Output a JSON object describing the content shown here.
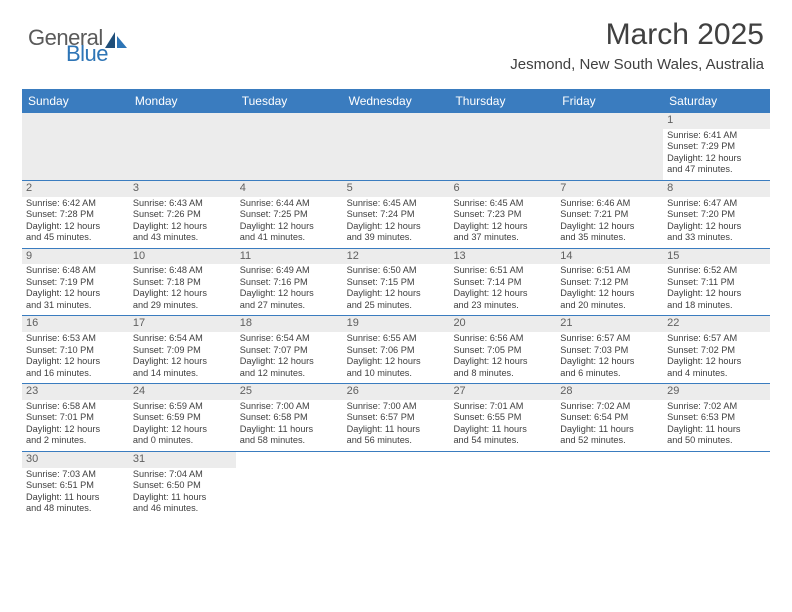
{
  "logo": {
    "general": "General",
    "blue": "Blue"
  },
  "title": "March 2025",
  "location": "Jesmond, New South Wales, Australia",
  "accent_color": "#3a7cbf",
  "logo_color": "#2e75b6",
  "text_color": "#404040",
  "header_bg": "#ececec",
  "days_of_week": [
    "Sunday",
    "Monday",
    "Tuesday",
    "Wednesday",
    "Thursday",
    "Friday",
    "Saturday"
  ],
  "weeks": [
    [
      null,
      null,
      null,
      null,
      null,
      null,
      {
        "n": "1",
        "sr": "Sunrise: 6:41 AM",
        "ss": "Sunset: 7:29 PM",
        "d1": "Daylight: 12 hours",
        "d2": "and 47 minutes."
      }
    ],
    [
      {
        "n": "2",
        "sr": "Sunrise: 6:42 AM",
        "ss": "Sunset: 7:28 PM",
        "d1": "Daylight: 12 hours",
        "d2": "and 45 minutes."
      },
      {
        "n": "3",
        "sr": "Sunrise: 6:43 AM",
        "ss": "Sunset: 7:26 PM",
        "d1": "Daylight: 12 hours",
        "d2": "and 43 minutes."
      },
      {
        "n": "4",
        "sr": "Sunrise: 6:44 AM",
        "ss": "Sunset: 7:25 PM",
        "d1": "Daylight: 12 hours",
        "d2": "and 41 minutes."
      },
      {
        "n": "5",
        "sr": "Sunrise: 6:45 AM",
        "ss": "Sunset: 7:24 PM",
        "d1": "Daylight: 12 hours",
        "d2": "and 39 minutes."
      },
      {
        "n": "6",
        "sr": "Sunrise: 6:45 AM",
        "ss": "Sunset: 7:23 PM",
        "d1": "Daylight: 12 hours",
        "d2": "and 37 minutes."
      },
      {
        "n": "7",
        "sr": "Sunrise: 6:46 AM",
        "ss": "Sunset: 7:21 PM",
        "d1": "Daylight: 12 hours",
        "d2": "and 35 minutes."
      },
      {
        "n": "8",
        "sr": "Sunrise: 6:47 AM",
        "ss": "Sunset: 7:20 PM",
        "d1": "Daylight: 12 hours",
        "d2": "and 33 minutes."
      }
    ],
    [
      {
        "n": "9",
        "sr": "Sunrise: 6:48 AM",
        "ss": "Sunset: 7:19 PM",
        "d1": "Daylight: 12 hours",
        "d2": "and 31 minutes."
      },
      {
        "n": "10",
        "sr": "Sunrise: 6:48 AM",
        "ss": "Sunset: 7:18 PM",
        "d1": "Daylight: 12 hours",
        "d2": "and 29 minutes."
      },
      {
        "n": "11",
        "sr": "Sunrise: 6:49 AM",
        "ss": "Sunset: 7:16 PM",
        "d1": "Daylight: 12 hours",
        "d2": "and 27 minutes."
      },
      {
        "n": "12",
        "sr": "Sunrise: 6:50 AM",
        "ss": "Sunset: 7:15 PM",
        "d1": "Daylight: 12 hours",
        "d2": "and 25 minutes."
      },
      {
        "n": "13",
        "sr": "Sunrise: 6:51 AM",
        "ss": "Sunset: 7:14 PM",
        "d1": "Daylight: 12 hours",
        "d2": "and 23 minutes."
      },
      {
        "n": "14",
        "sr": "Sunrise: 6:51 AM",
        "ss": "Sunset: 7:12 PM",
        "d1": "Daylight: 12 hours",
        "d2": "and 20 minutes."
      },
      {
        "n": "15",
        "sr": "Sunrise: 6:52 AM",
        "ss": "Sunset: 7:11 PM",
        "d1": "Daylight: 12 hours",
        "d2": "and 18 minutes."
      }
    ],
    [
      {
        "n": "16",
        "sr": "Sunrise: 6:53 AM",
        "ss": "Sunset: 7:10 PM",
        "d1": "Daylight: 12 hours",
        "d2": "and 16 minutes."
      },
      {
        "n": "17",
        "sr": "Sunrise: 6:54 AM",
        "ss": "Sunset: 7:09 PM",
        "d1": "Daylight: 12 hours",
        "d2": "and 14 minutes."
      },
      {
        "n": "18",
        "sr": "Sunrise: 6:54 AM",
        "ss": "Sunset: 7:07 PM",
        "d1": "Daylight: 12 hours",
        "d2": "and 12 minutes."
      },
      {
        "n": "19",
        "sr": "Sunrise: 6:55 AM",
        "ss": "Sunset: 7:06 PM",
        "d1": "Daylight: 12 hours",
        "d2": "and 10 minutes."
      },
      {
        "n": "20",
        "sr": "Sunrise: 6:56 AM",
        "ss": "Sunset: 7:05 PM",
        "d1": "Daylight: 12 hours",
        "d2": "and 8 minutes."
      },
      {
        "n": "21",
        "sr": "Sunrise: 6:57 AM",
        "ss": "Sunset: 7:03 PM",
        "d1": "Daylight: 12 hours",
        "d2": "and 6 minutes."
      },
      {
        "n": "22",
        "sr": "Sunrise: 6:57 AM",
        "ss": "Sunset: 7:02 PM",
        "d1": "Daylight: 12 hours",
        "d2": "and 4 minutes."
      }
    ],
    [
      {
        "n": "23",
        "sr": "Sunrise: 6:58 AM",
        "ss": "Sunset: 7:01 PM",
        "d1": "Daylight: 12 hours",
        "d2": "and 2 minutes."
      },
      {
        "n": "24",
        "sr": "Sunrise: 6:59 AM",
        "ss": "Sunset: 6:59 PM",
        "d1": "Daylight: 12 hours",
        "d2": "and 0 minutes."
      },
      {
        "n": "25",
        "sr": "Sunrise: 7:00 AM",
        "ss": "Sunset: 6:58 PM",
        "d1": "Daylight: 11 hours",
        "d2": "and 58 minutes."
      },
      {
        "n": "26",
        "sr": "Sunrise: 7:00 AM",
        "ss": "Sunset: 6:57 PM",
        "d1": "Daylight: 11 hours",
        "d2": "and 56 minutes."
      },
      {
        "n": "27",
        "sr": "Sunrise: 7:01 AM",
        "ss": "Sunset: 6:55 PM",
        "d1": "Daylight: 11 hours",
        "d2": "and 54 minutes."
      },
      {
        "n": "28",
        "sr": "Sunrise: 7:02 AM",
        "ss": "Sunset: 6:54 PM",
        "d1": "Daylight: 11 hours",
        "d2": "and 52 minutes."
      },
      {
        "n": "29",
        "sr": "Sunrise: 7:02 AM",
        "ss": "Sunset: 6:53 PM",
        "d1": "Daylight: 11 hours",
        "d2": "and 50 minutes."
      }
    ],
    [
      {
        "n": "30",
        "sr": "Sunrise: 7:03 AM",
        "ss": "Sunset: 6:51 PM",
        "d1": "Daylight: 11 hours",
        "d2": "and 48 minutes."
      },
      {
        "n": "31",
        "sr": "Sunrise: 7:04 AM",
        "ss": "Sunset: 6:50 PM",
        "d1": "Daylight: 11 hours",
        "d2": "and 46 minutes."
      },
      null,
      null,
      null,
      null,
      null
    ]
  ]
}
